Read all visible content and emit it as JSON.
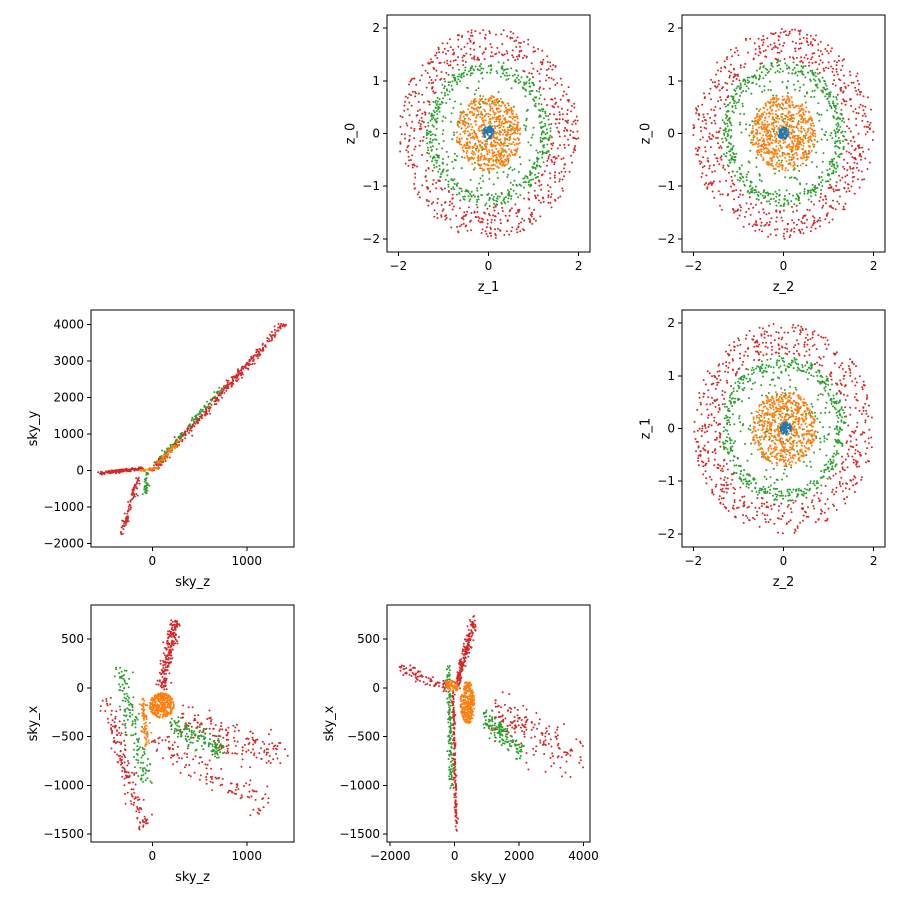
{
  "colors": {
    "blue": "#1f77b4",
    "orange": "#ff7f0e",
    "green": "#2ca02c",
    "red": "#d62728"
  },
  "chart_data": [
    {
      "id": "p12",
      "type": "scatter",
      "xlabel": "z_1",
      "ylabel": "z_0",
      "xlim": [
        -2.25,
        2.25
      ],
      "ylim": [
        -2.25,
        2.25
      ],
      "xticks": [
        -2,
        0,
        2
      ],
      "yticks": [
        -2,
        -1,
        0,
        1,
        2
      ],
      "groups": [
        {
          "color": "red",
          "shape": "ring",
          "cx": 0,
          "cy": 0,
          "r_in": 1.4,
          "r_out": 2.0,
          "count": 650
        },
        {
          "color": "green",
          "shape": "ring",
          "cx": 0,
          "cy": 0,
          "r_in": 1.15,
          "r_out": 1.38,
          "count": 420
        },
        {
          "color": "green",
          "shape": "disk",
          "cx": 0,
          "cy": 0,
          "r_in": 0,
          "r_out": 1.3,
          "count": 220
        },
        {
          "color": "orange",
          "shape": "disk",
          "cx": 0,
          "cy": 0,
          "r_in": 0,
          "r_out": 0.72,
          "count": 650
        },
        {
          "color": "blue",
          "shape": "disk",
          "cx": 0,
          "cy": 0.02,
          "r_in": 0,
          "r_out": 0.12,
          "count": 70
        }
      ]
    },
    {
      "id": "p13",
      "type": "scatter",
      "xlabel": "z_2",
      "ylabel": "z_0",
      "xlim": [
        -2.25,
        2.25
      ],
      "ylim": [
        -2.25,
        2.25
      ],
      "xticks": [
        -2,
        0,
        2
      ],
      "yticks": [
        -2,
        -1,
        0,
        1,
        2
      ],
      "groups": [
        {
          "color": "red",
          "shape": "ring",
          "cx": 0,
          "cy": 0,
          "r_in": 1.4,
          "r_out": 2.0,
          "count": 650
        },
        {
          "color": "green",
          "shape": "ring",
          "cx": 0,
          "cy": 0,
          "r_in": 1.15,
          "r_out": 1.38,
          "count": 420
        },
        {
          "color": "green",
          "shape": "disk",
          "cx": 0,
          "cy": 0,
          "r_in": 0,
          "r_out": 1.3,
          "count": 220
        },
        {
          "color": "orange",
          "shape": "disk",
          "cx": 0,
          "cy": 0,
          "r_in": 0,
          "r_out": 0.72,
          "count": 650
        },
        {
          "color": "blue",
          "shape": "disk",
          "cx": 0,
          "cy": 0,
          "r_in": 0,
          "r_out": 0.12,
          "count": 70
        }
      ]
    },
    {
      "id": "p23",
      "type": "scatter",
      "xlabel": "z_2",
      "ylabel": "z_1",
      "xlim": [
        -2.25,
        2.25
      ],
      "ylim": [
        -2.25,
        2.25
      ],
      "xticks": [
        -2,
        0,
        2
      ],
      "yticks": [
        -2,
        -1,
        0,
        1,
        2
      ],
      "groups": [
        {
          "color": "red",
          "shape": "ring",
          "cx": 0,
          "cy": 0,
          "r_in": 1.4,
          "r_out": 2.0,
          "count": 650
        },
        {
          "color": "green",
          "shape": "ring",
          "cx": 0,
          "cy": 0,
          "r_in": 1.15,
          "r_out": 1.38,
          "count": 420
        },
        {
          "color": "green",
          "shape": "disk",
          "cx": 0,
          "cy": 0,
          "r_in": 0,
          "r_out": 1.3,
          "count": 220
        },
        {
          "color": "orange",
          "shape": "disk",
          "cx": 0,
          "cy": 0,
          "r_in": 0,
          "r_out": 0.72,
          "count": 650
        },
        {
          "color": "blue",
          "shape": "disk",
          "cx": 0.05,
          "cy": 0,
          "r_in": 0,
          "r_out": 0.12,
          "count": 70
        }
      ]
    },
    {
      "id": "p21",
      "type": "scatter",
      "xlabel": "sky_z",
      "ylabel": "sky_y",
      "xlim": [
        -650,
        1500
      ],
      "ylim": [
        -2100,
        4400
      ],
      "xticks": [
        0,
        1000
      ],
      "yticks": [
        -2000,
        -1000,
        0,
        1000,
        2000,
        3000,
        4000
      ],
      "groups": [
        {
          "color": "red",
          "shape": "line",
          "x1": 0,
          "y1": 0,
          "x2": 1400,
          "y2": 4050,
          "spread": 40,
          "count": 400
        },
        {
          "color": "green",
          "shape": "line",
          "x1": 50,
          "y1": 200,
          "x2": 750,
          "y2": 2300,
          "spread": 30,
          "count": 90
        },
        {
          "color": "orange",
          "shape": "line",
          "x1": 50,
          "y1": 150,
          "x2": 300,
          "y2": 850,
          "spread": 25,
          "count": 60
        },
        {
          "color": "red",
          "shape": "line",
          "x1": -560,
          "y1": -80,
          "x2": -100,
          "y2": 60,
          "spread": 35,
          "count": 160
        },
        {
          "color": "red",
          "shape": "line",
          "x1": -150,
          "y1": -200,
          "x2": -330,
          "y2": -1750,
          "spread": 25,
          "count": 80
        },
        {
          "color": "green",
          "shape": "line",
          "x1": -60,
          "y1": -50,
          "x2": -70,
          "y2": -650,
          "spread": 20,
          "count": 40
        },
        {
          "color": "orange",
          "shape": "line",
          "x1": -120,
          "y1": 0,
          "x2": 50,
          "y2": 60,
          "spread": 20,
          "count": 40
        }
      ]
    },
    {
      "id": "p31",
      "type": "scatter",
      "xlabel": "sky_z",
      "ylabel": "sky_x",
      "xlim": [
        -650,
        1500
      ],
      "ylim": [
        -1580,
        850
      ],
      "xticks": [
        0,
        1000
      ],
      "yticks": [
        -1500,
        -1000,
        -500,
        0,
        500
      ],
      "groups": [
        {
          "color": "red",
          "shape": "line",
          "x1": 100,
          "y1": 0,
          "x2": 250,
          "y2": 700,
          "spread": 45,
          "count": 200
        },
        {
          "color": "red",
          "shape": "line",
          "x1": -500,
          "y1": -100,
          "x2": -100,
          "y2": -1450,
          "spread": 70,
          "count": 160
        },
        {
          "color": "red",
          "shape": "line",
          "x1": 250,
          "y1": -300,
          "x2": 1350,
          "y2": -700,
          "spread": 150,
          "count": 170
        },
        {
          "color": "red",
          "shape": "line",
          "x1": 0,
          "y1": -550,
          "x2": 1200,
          "y2": -1200,
          "spread": 120,
          "count": 120
        },
        {
          "color": "green",
          "shape": "line",
          "x1": 200,
          "y1": -350,
          "x2": 750,
          "y2": -650,
          "spread": 80,
          "count": 140
        },
        {
          "color": "green",
          "shape": "line",
          "x1": -350,
          "y1": 200,
          "x2": -50,
          "y2": -1000,
          "spread": 80,
          "count": 140
        },
        {
          "color": "orange",
          "shape": "disk",
          "cx": 100,
          "cy": -180,
          "r_in": 0,
          "r_out": 130,
          "count": 300
        },
        {
          "color": "orange",
          "shape": "line",
          "x1": -100,
          "y1": -100,
          "x2": -50,
          "y2": -600,
          "spread": 40,
          "count": 70
        }
      ]
    },
    {
      "id": "p32",
      "type": "scatter",
      "xlabel": "sky_y",
      "ylabel": "sky_x",
      "xlim": [
        -2100,
        4200
      ],
      "ylim": [
        -1580,
        850
      ],
      "xticks": [
        -2000,
        0,
        2000,
        4000
      ],
      "yticks": [
        -1500,
        -1000,
        -500,
        0,
        500
      ],
      "groups": [
        {
          "color": "red",
          "shape": "line",
          "x1": 50,
          "y1": 0,
          "x2": 600,
          "y2": 700,
          "spread": 80,
          "count": 200
        },
        {
          "color": "red",
          "shape": "line",
          "x1": -50,
          "y1": -50,
          "x2": 50,
          "y2": -1450,
          "spread": 35,
          "count": 160
        },
        {
          "color": "red",
          "shape": "line",
          "x1": 1200,
          "y1": -300,
          "x2": 3900,
          "y2": -700,
          "spread": 200,
          "count": 170
        },
        {
          "color": "red",
          "shape": "line",
          "x1": -1700,
          "y1": 200,
          "x2": -200,
          "y2": 0,
          "spread": 60,
          "count": 80
        },
        {
          "color": "green",
          "shape": "line",
          "x1": 900,
          "y1": -300,
          "x2": 2100,
          "y2": -650,
          "spread": 110,
          "count": 140
        },
        {
          "color": "green",
          "shape": "line",
          "x1": -200,
          "y1": 200,
          "x2": -100,
          "y2": -1000,
          "spread": 60,
          "count": 140
        },
        {
          "color": "orange",
          "shape": "disk",
          "cx": 400,
          "cy": -150,
          "r_in": 0,
          "r_out": 220,
          "count": 300
        },
        {
          "color": "orange",
          "shape": "line",
          "x1": -300,
          "y1": 50,
          "x2": 100,
          "y2": 0,
          "spread": 40,
          "count": 70
        }
      ]
    }
  ]
}
